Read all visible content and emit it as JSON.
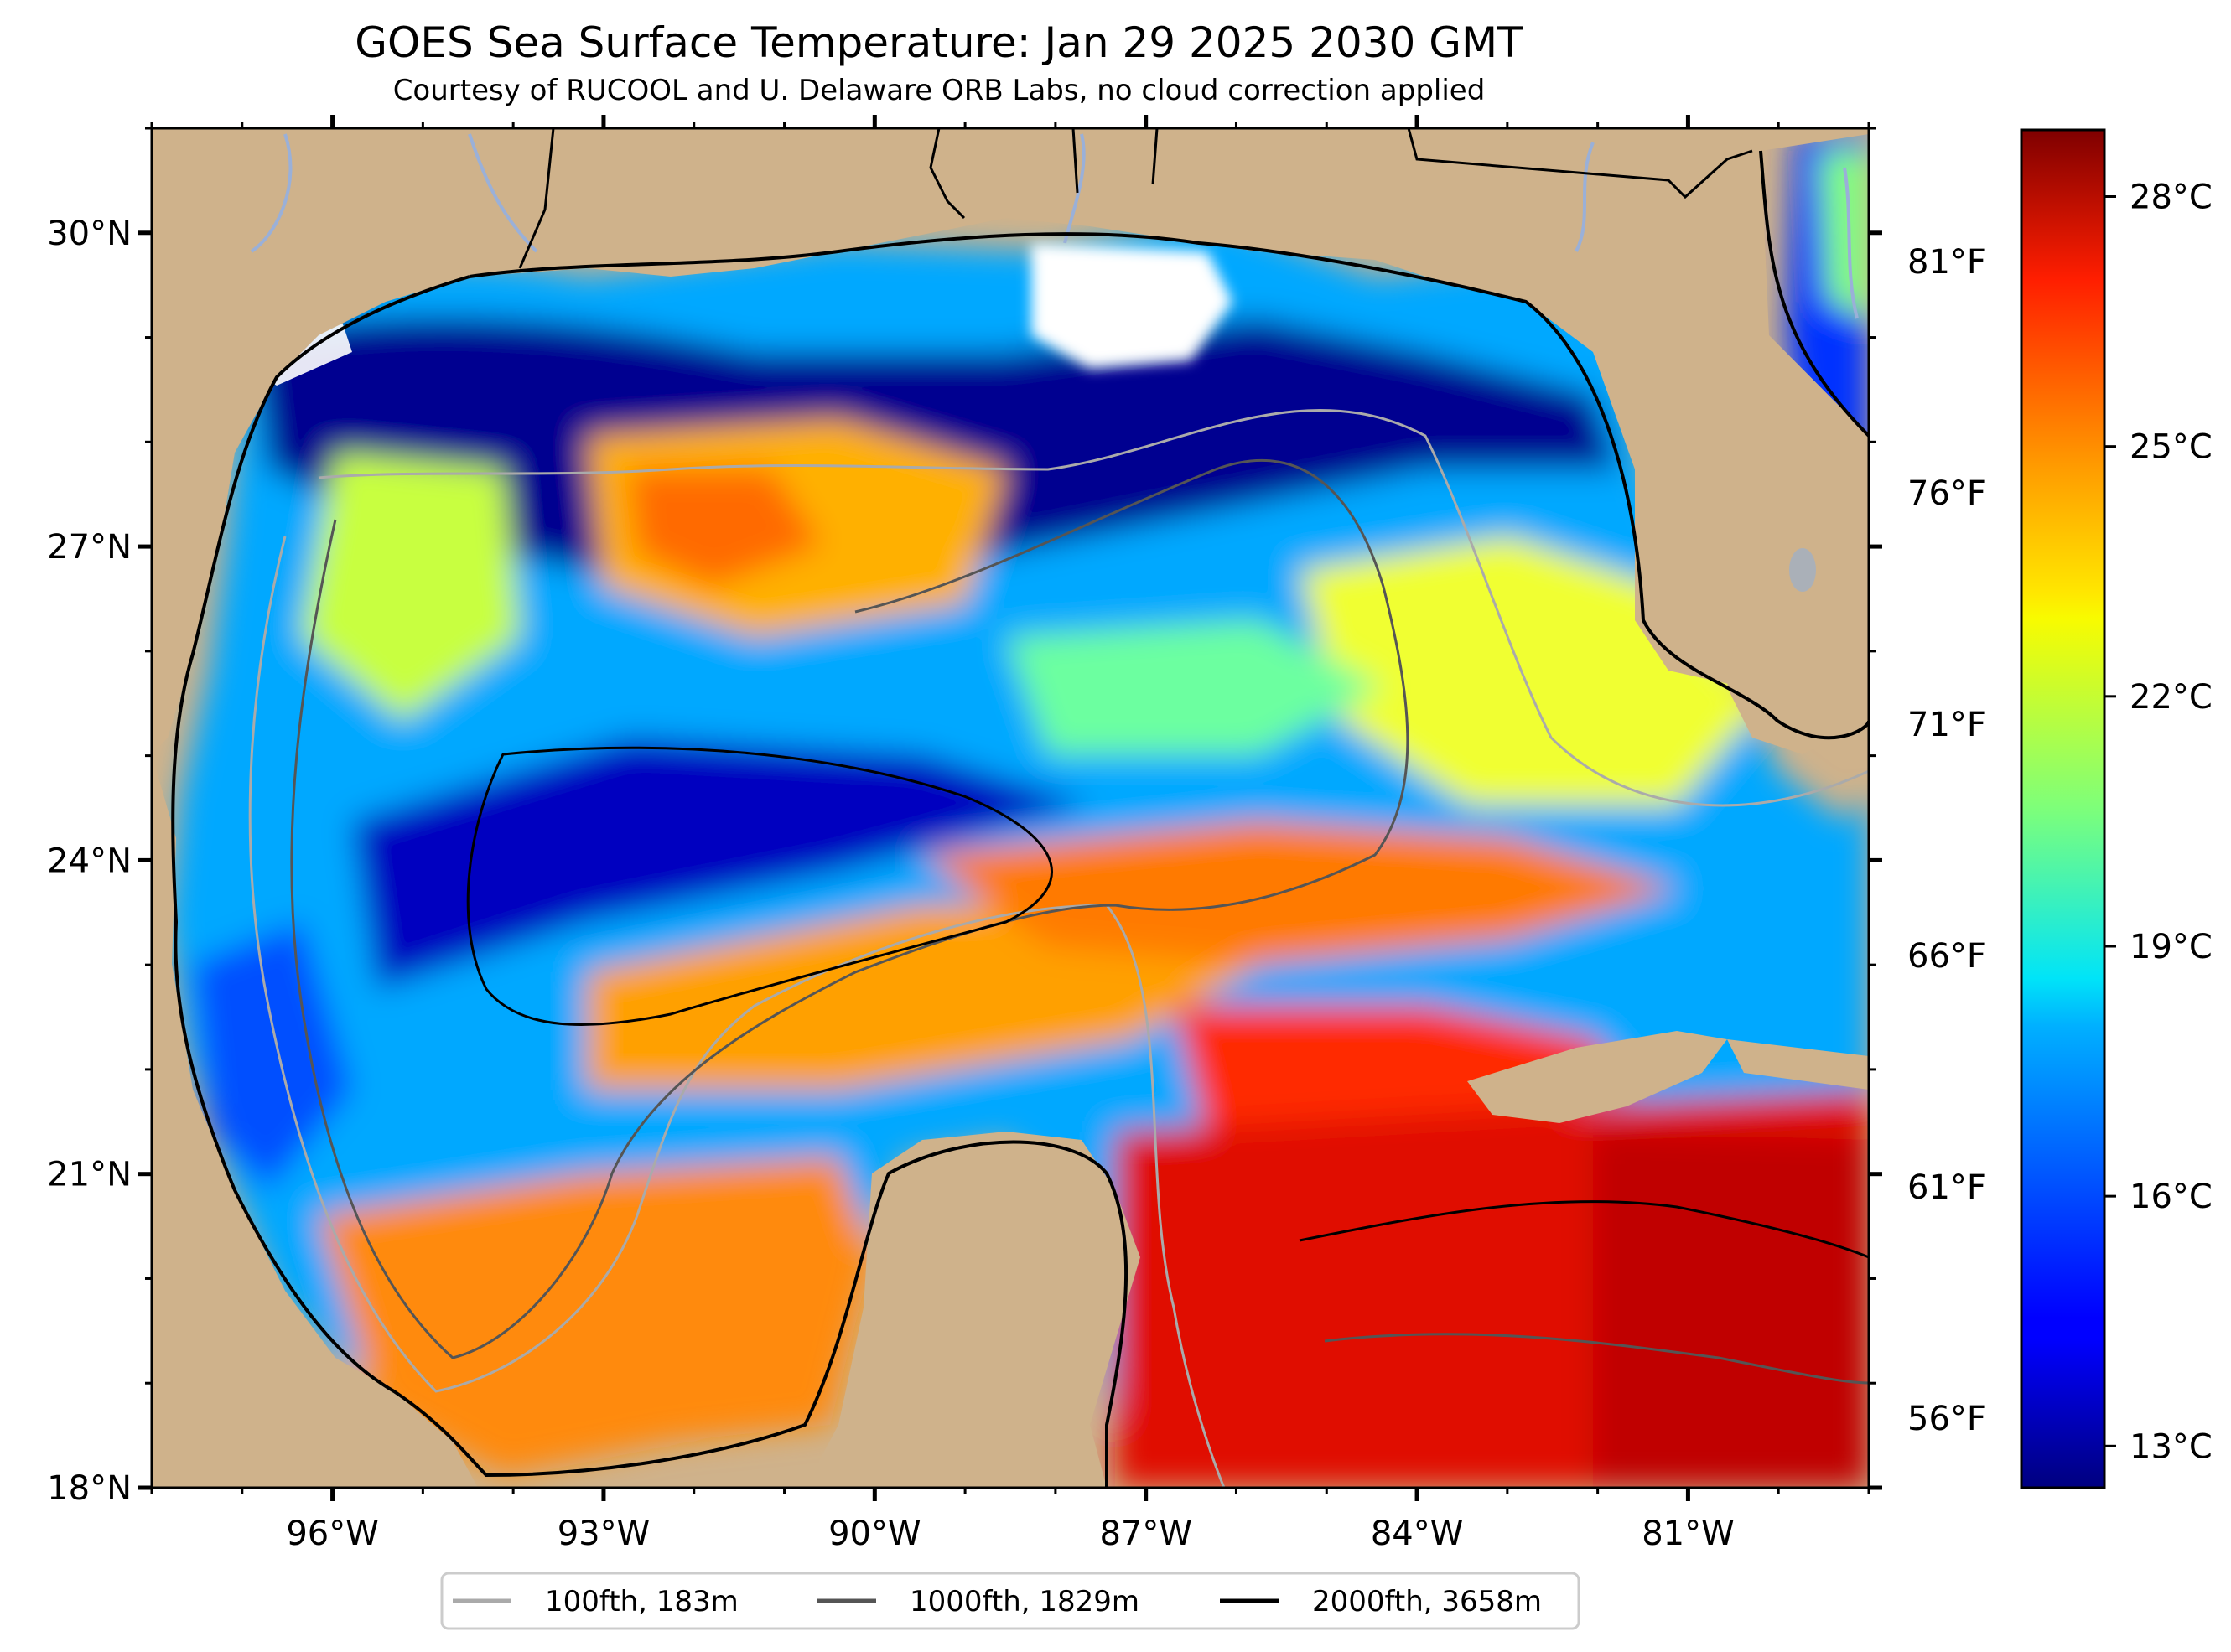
{
  "title": "GOES Sea Surface Temperature: Jan 29 2025 2030 GMT",
  "subtitle": "Courtesy of RUCOOL and U. Delaware ORB Labs, no cloud correction applied",
  "map": {
    "lon_range": [
      -98.0,
      -79.0
    ],
    "lat_range": [
      18.0,
      31.0
    ],
    "lon_ticks": [
      {
        "value": -96,
        "label": "96°W"
      },
      {
        "value": -93,
        "label": "93°W"
      },
      {
        "value": -90,
        "label": "90°W"
      },
      {
        "value": -87,
        "label": "87°W"
      },
      {
        "value": -84,
        "label": "84°W"
      },
      {
        "value": -81,
        "label": "81°W"
      }
    ],
    "lat_ticks": [
      {
        "value": 18,
        "label": "18°N"
      },
      {
        "value": 21,
        "label": "21°N"
      },
      {
        "value": 24,
        "label": "24°N"
      },
      {
        "value": 27,
        "label": "27°N"
      },
      {
        "value": 30,
        "label": "30°N"
      }
    ],
    "land_color": "#cfb28b",
    "cloud_color": "#ffffff",
    "river_color": "#9ab0d8"
  },
  "colorbar": {
    "min_c": 12.5,
    "max_c": 28.8,
    "celsius_ticks": [
      {
        "value": 13,
        "label": "13°C"
      },
      {
        "value": 16,
        "label": "16°C"
      },
      {
        "value": 19,
        "label": "19°C"
      },
      {
        "value": 22,
        "label": "22°C"
      },
      {
        "value": 25,
        "label": "25°C"
      },
      {
        "value": 28,
        "label": "28°C"
      }
    ],
    "fahrenheit_ticks": [
      {
        "value": 56,
        "label": "56°F"
      },
      {
        "value": 61,
        "label": "61°F"
      },
      {
        "value": 66,
        "label": "66°F"
      },
      {
        "value": 71,
        "label": "71°F"
      },
      {
        "value": 76,
        "label": "76°F"
      },
      {
        "value": 81,
        "label": "81°F"
      }
    ],
    "colormap": "jet"
  },
  "legend": {
    "entries": [
      {
        "label": "100fth, 183m",
        "color": "#aaaaaa"
      },
      {
        "label": "1000fth, 1829m",
        "color": "#555555"
      },
      {
        "label": "2000fth, 3658m",
        "color": "#000000"
      }
    ]
  }
}
